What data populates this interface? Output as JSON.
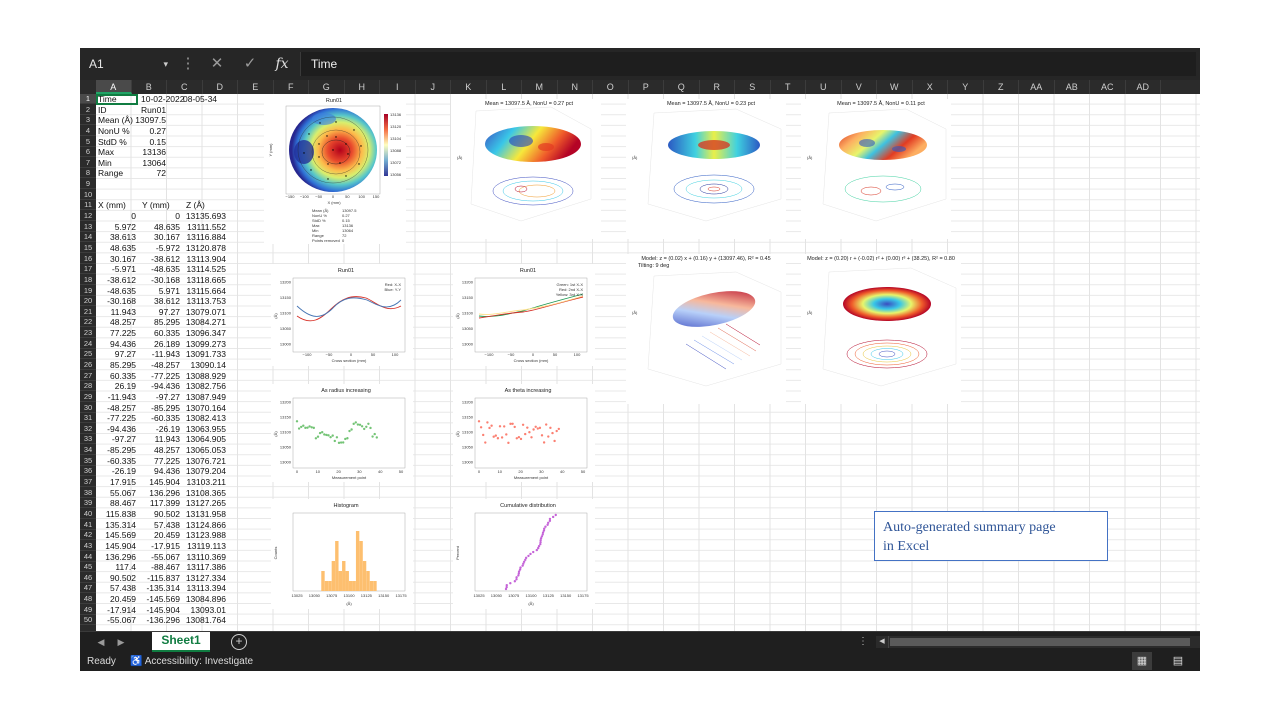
{
  "formula_bar": {
    "name_box": "A1",
    "name_box_caret": "▾",
    "more_icon": "⋮",
    "cancel_icon": "✕",
    "enter_icon": "✓",
    "fx_label": "fx",
    "content": "Time"
  },
  "columns": [
    "A",
    "B",
    "C",
    "D",
    "E",
    "F",
    "G",
    "H",
    "I",
    "J",
    "K",
    "L",
    "M",
    "N",
    "O",
    "P",
    "Q",
    "R",
    "S",
    "T",
    "U",
    "V",
    "W",
    "X",
    "Y",
    "Z",
    "AA",
    "AB",
    "AC",
    "AD"
  ],
  "rows": {
    "first": 1,
    "last": 50
  },
  "summary": [
    {
      "label": "Time",
      "value": "10-02-2022",
      "value2": "08-05-34"
    },
    {
      "label": "ID",
      "value": "Run01"
    },
    {
      "label": "Mean (Å)",
      "value": "13097.5"
    },
    {
      "label": "NonU %",
      "value": "0.27"
    },
    {
      "label": "StdD %",
      "value": "0.15"
    },
    {
      "label": "Max",
      "value": "13136"
    },
    {
      "label": "Min",
      "value": "13064"
    },
    {
      "label": "Range",
      "value": "72"
    }
  ],
  "table_headers": [
    "X (mm)",
    "Y (mm)",
    "Z (Å)"
  ],
  "table_rows": [
    [
      "0",
      "0",
      "13135.693"
    ],
    [
      "5.972",
      "48.635",
      "13111.552"
    ],
    [
      "38.613",
      "30.167",
      "13116.884"
    ],
    [
      "48.635",
      "-5.972",
      "13120.878"
    ],
    [
      "30.167",
      "-38.612",
      "13113.904"
    ],
    [
      "-5.971",
      "-48.635",
      "13114.525"
    ],
    [
      "-38.612",
      "-30.168",
      "13118.665"
    ],
    [
      "-48.635",
      "5.971",
      "13115.664"
    ],
    [
      "-30.168",
      "38.612",
      "13113.753"
    ],
    [
      "11.943",
      "97.27",
      "13079.071"
    ],
    [
      "48.257",
      "85.295",
      "13084.271"
    ],
    [
      "77.225",
      "60.335",
      "13096.347"
    ],
    [
      "94.436",
      "26.189",
      "13099.273"
    ],
    [
      "97.27",
      "-11.943",
      "13091.733"
    ],
    [
      "85.295",
      "-48.257",
      "13090.14"
    ],
    [
      "60.335",
      "-77.225",
      "13088.929"
    ],
    [
      "26.19",
      "-94.436",
      "13082.756"
    ],
    [
      "-11.943",
      "-97.27",
      "13087.949"
    ],
    [
      "-48.257",
      "-85.295",
      "13070.164"
    ],
    [
      "-77.225",
      "-60.335",
      "13082.413"
    ],
    [
      "-94.436",
      "-26.19",
      "13063.955"
    ],
    [
      "-97.27",
      "11.943",
      "13064.905"
    ],
    [
      "-85.295",
      "48.257",
      "13065.053"
    ],
    [
      "-60.335",
      "77.225",
      "13076.721"
    ],
    [
      "-26.19",
      "94.436",
      "13079.204"
    ],
    [
      "17.915",
      "145.904",
      "13103.211"
    ],
    [
      "55.067",
      "136.296",
      "13108.365"
    ],
    [
      "88.467",
      "117.399",
      "13127.265"
    ],
    [
      "115.838",
      "90.502",
      "13131.958"
    ],
    [
      "135.314",
      "57.438",
      "13124.866"
    ],
    [
      "145.569",
      "20.459",
      "13123.988"
    ],
    [
      "145.904",
      "-17.915",
      "13119.113"
    ],
    [
      "136.296",
      "-55.067",
      "13110.369"
    ],
    [
      "117.4",
      "-88.467",
      "13117.386"
    ],
    [
      "90.502",
      "-115.837",
      "13127.334"
    ],
    [
      "57.438",
      "-135.314",
      "13113.394"
    ],
    [
      "20.459",
      "-145.569",
      "13084.896"
    ],
    [
      "-17.914",
      "-145.904",
      "13093.01"
    ],
    [
      "-55.067",
      "-136.296",
      "13081.764"
    ]
  ],
  "charts": {
    "map_title": "Run01",
    "map_axis_x": "X (mm)",
    "map_axis_y": "Y (mm)",
    "map_ticks": [
      "−150",
      "−100",
      "−50",
      "0",
      "50",
      "100",
      "150"
    ],
    "map_colorbar_ticks": [
      "13136",
      "13120",
      "13104",
      "13088",
      "13072",
      "13056"
    ],
    "map_stats": [
      "Mean (Å)",
      "NonU %",
      "StdD %",
      "Max",
      "Min",
      "Range",
      "Points removed"
    ],
    "map_stats_values": [
      "13097.5",
      "0.27",
      "0.15",
      "13136",
      "13064",
      "72",
      "0"
    ],
    "surf1_title": "Mean = 13097.5 Å, NonU = 0.27 pct",
    "surf2_title": "Mean = 13097.5 Å, NonU = 0.23 pct",
    "surf3_title": "Mean = 13097.5 Å, NonU = 0.11 pct",
    "model1_title": "Model: z = (0.02) x + (0.16) y + (13097.46), R² = 0.45",
    "model1_subtitle": "Tilting: 9 deg",
    "model2_title": "Model: z = (0.20) r + (-0.02) r² + (0.00) r³ + (38.25), R² = 0.80",
    "surf_ylabel": "(Å)",
    "surf_zticks": [
      "13200",
      "13150",
      "13100",
      "13050",
      "13000",
      "12950",
      "12900",
      "12850",
      "12800"
    ],
    "cs1_title": "Run01",
    "cs1_legend": [
      "Red: X-X",
      "Blue: Y-Y"
    ],
    "cs2_title": "Run01",
    "cs2_legend": [
      "Green: 1st X-X",
      "Red: 2nd X-X",
      "Yellow: 3rd X-X"
    ],
    "cs_xlabel": "Cross section (mm)",
    "cs_xticks": [
      "−100",
      "−50",
      "0",
      "50",
      "100"
    ],
    "cs_yticks": [
      "13200",
      "13150",
      "13100",
      "13050",
      "13000"
    ],
    "radius_title": "As radius increasing",
    "theta_title": "As theta increasing",
    "seq_xlabel": "Measurement point",
    "seq_xticks": [
      "0",
      "10",
      "20",
      "30",
      "40",
      "50"
    ],
    "hist_title": "Histogram",
    "hist_ylabel": "Counts",
    "cdf_title": "Cumulative distribution",
    "cdf_ylabel": "Percent",
    "dist_xlabel": "(Å)",
    "dist_xticks": [
      "13025",
      "13050",
      "13075",
      "13100",
      "13125",
      "13150",
      "13175"
    ],
    "axis_a": "(Å)"
  },
  "annotation": {
    "line1": "Auto-generated summary page",
    "line2": "in Excel"
  },
  "sheet_tab": "Sheet1",
  "add_sheet": "+",
  "status": {
    "ready": "Ready",
    "accessibility": "Accessibility: Investigate"
  },
  "colors": {
    "accent_green": "#107c41",
    "dark_bg": "#1f1f1f",
    "annotation_border": "#4472c4",
    "annotation_text": "#2f5597"
  }
}
